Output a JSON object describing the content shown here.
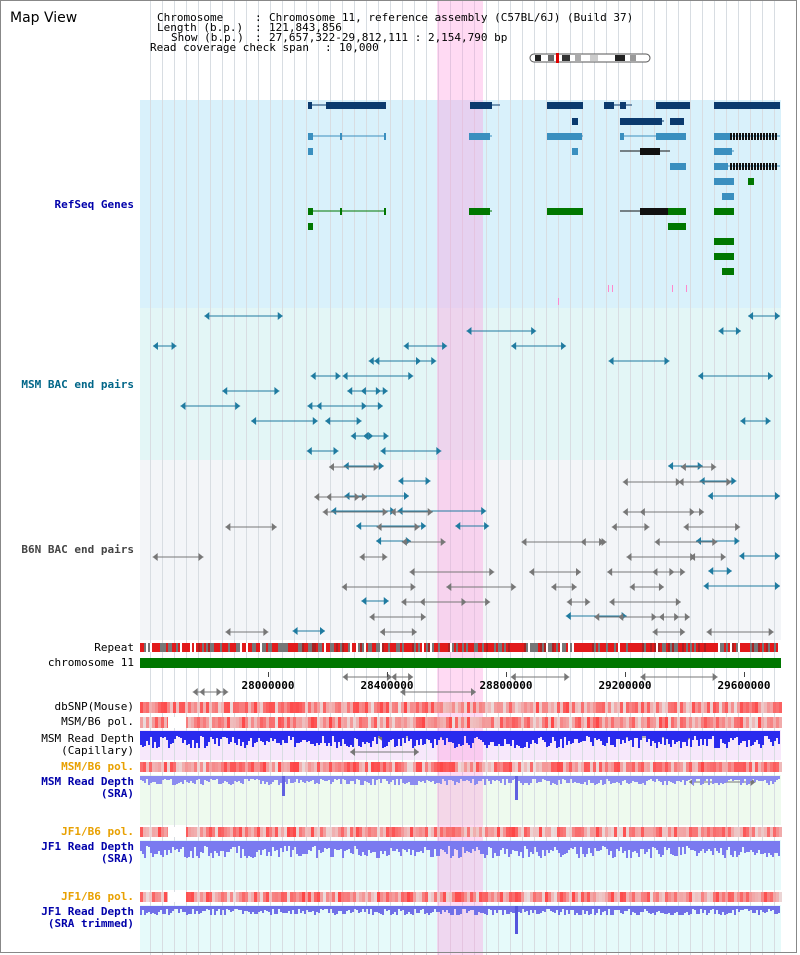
{
  "title": "Map View",
  "header": {
    "chromosome_key": "Chromosome",
    "chromosome_val": "Chromosome 11, reference assembly (C57BL/6J) (Build 37)",
    "length_key": "Length (b.p.)",
    "length_val": "121,843,856",
    "show_key": "Show (b.p.)",
    "show_val": "27,657,322-29,812,111 : 2,154,790 bp",
    "coverage_key": "Read coverage check span",
    "coverage_val": "10,000"
  },
  "tracks": {
    "refseq": "RefSeq Genes",
    "msm_bac": "MSM BAC end pairs",
    "b6n_bac": "B6N BAC end pairs",
    "repeat": "Repeat",
    "chromosome": "chromosome 11",
    "dbsnp": "dbSNP(Mouse)",
    "msm_b6_pol": "MSM/B6 pol.",
    "msm_depth_cap_1": "MSM Read Depth",
    "msm_depth_cap_2": "(Capillary)",
    "msm_b6_pol_2": "MSM/B6 pol.",
    "msm_depth_sra_1": "MSM Read Depth",
    "msm_depth_sra_2": "(SRA)",
    "jf1_b6_pol": "JF1/B6 pol.",
    "jf1_depth_sra_1": "JF1 Read Depth",
    "jf1_depth_sra_2": "(SRA)",
    "jf1_b6_pol_2": "JF1/B6 pol.",
    "jf1_depth_trim_1": "JF1 Read Depth",
    "jf1_depth_trim_2": "(SRA trimmed)"
  },
  "axis": {
    "ticks": [
      "28000000",
      "28400000",
      "28800000",
      "29200000",
      "29600000"
    ]
  },
  "colors": {
    "refseq_bg": "#d9f1fb",
    "msm_bg": "#e3f6f6",
    "b6n_bg": "#f2f4f7",
    "highlight": "#ffc6ec",
    "chromosome": "#007700",
    "depth_blue": "#3333ee",
    "pol_red": "#ee3333"
  }
}
